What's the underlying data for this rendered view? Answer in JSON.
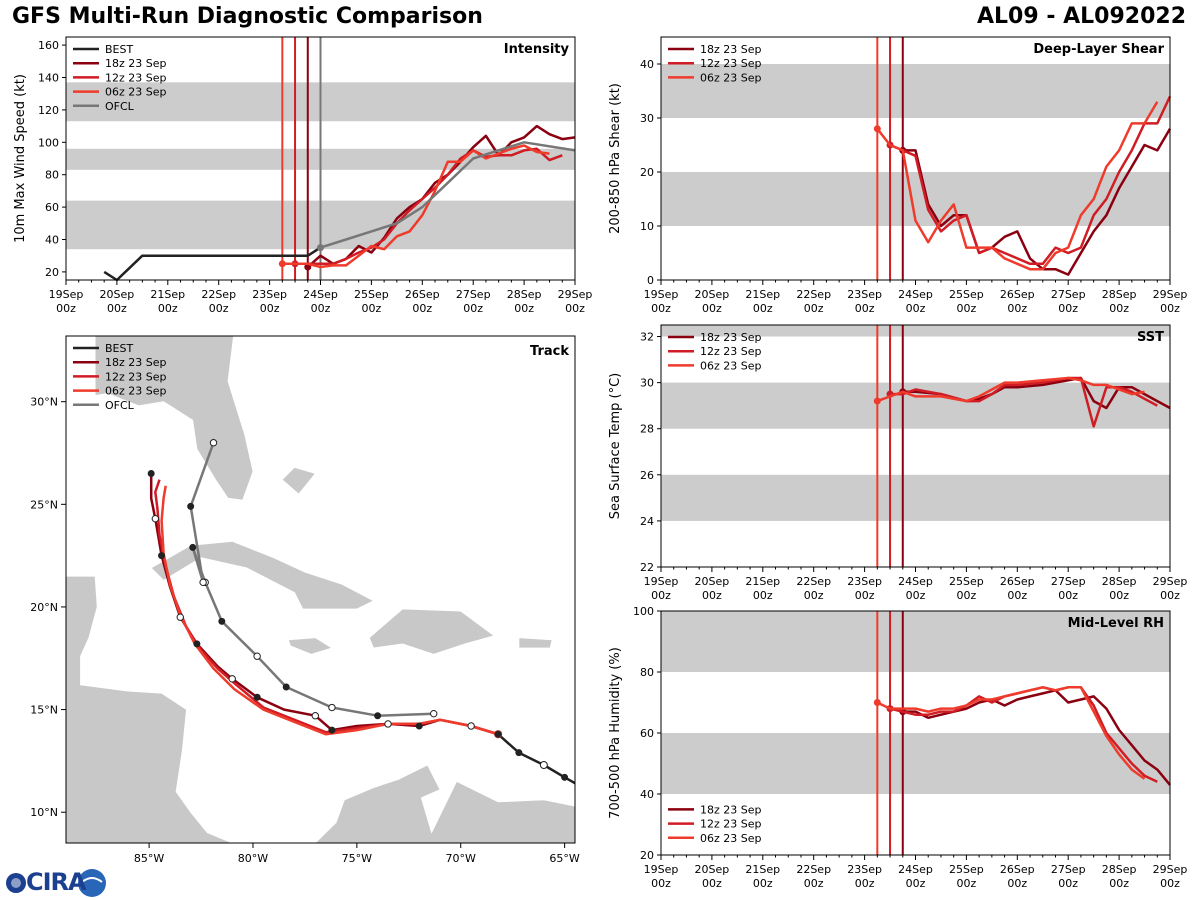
{
  "header": {
    "title": "GFS Multi-Run Diagnostic Comparison",
    "storm_id": "AL09 - AL092022"
  },
  "logo": {
    "text": "CIRA"
  },
  "colors": {
    "best": "#222222",
    "run18z": "#8b0010",
    "run12z": "#d01c24",
    "run06z": "#ef3b2c",
    "ofcl": "#777777",
    "band": "#cccccc",
    "land": "#c8c8c8"
  },
  "time_axis": {
    "ticks": [
      "19Sep\n00z",
      "20Sep\n00z",
      "21Sep\n00z",
      "22Sep\n00z",
      "23Sep\n00z",
      "24Sep\n00z",
      "25Sep\n00z",
      "26Sep\n00z",
      "27Sep\n00z",
      "28Sep\n00z",
      "29Sep\n00z"
    ],
    "init_lines_hours": {
      "06z 23 Sep": 102,
      "12z 23 Sep": 108,
      "18z 23 Sep": 114,
      "OFCL": 120
    }
  },
  "chart_data": [
    {
      "id": "intensity",
      "type": "line",
      "title": "Intensity",
      "xlabel": "",
      "ylabel": "10m Max Wind Speed (kt)",
      "xlim_hours": [
        0,
        240
      ],
      "ylim": [
        15,
        165
      ],
      "yticks": [
        20,
        40,
        60,
        80,
        100,
        120,
        140,
        160
      ],
      "bands": [
        [
          34,
          64
        ],
        [
          83,
          96
        ],
        [
          113,
          137
        ]
      ],
      "legend": {
        "position": "top-left",
        "entries": [
          "BEST",
          "18z 23 Sep",
          "12z 23 Sep",
          "06z 23 Sep",
          "OFCL"
        ]
      },
      "series": [
        {
          "name": "BEST",
          "x_hours": [
            18,
            24,
            36,
            48,
            60,
            72,
            84,
            96,
            108,
            114,
            120
          ],
          "values": [
            20,
            15,
            30,
            30,
            30,
            30,
            30,
            30,
            30,
            30,
            35
          ]
        },
        {
          "name": "18z 23 Sep",
          "x_hours": [
            114,
            120,
            126,
            132,
            138,
            144,
            150,
            156,
            162,
            168,
            174,
            180,
            186,
            192,
            198,
            204,
            210,
            216,
            222,
            228,
            234,
            240
          ],
          "values": [
            23,
            30,
            25,
            28,
            36,
            32,
            41,
            53,
            60,
            65,
            75,
            80,
            88,
            97,
            104,
            92,
            100,
            103,
            110,
            105,
            102,
            103
          ]
        },
        {
          "name": "12z 23 Sep",
          "x_hours": [
            108,
            114,
            120,
            126,
            132,
            138,
            144,
            150,
            156,
            162,
            168,
            174,
            180,
            186,
            192,
            198,
            204,
            210,
            216,
            222,
            228,
            234
          ],
          "values": [
            25,
            25,
            25,
            25,
            28,
            32,
            35,
            40,
            50,
            58,
            65,
            72,
            80,
            90,
            95,
            91,
            92,
            92,
            95,
            96,
            89,
            92
          ]
        },
        {
          "name": "06z 23 Sep",
          "x_hours": [
            102,
            108,
            114,
            120,
            126,
            132,
            138,
            144,
            150,
            156,
            162,
            168,
            174,
            180,
            186,
            192,
            198,
            204,
            210,
            216,
            222,
            228
          ],
          "values": [
            25,
            25,
            25,
            23,
            24,
            24,
            30,
            36,
            34,
            42,
            45,
            55,
            70,
            88,
            88,
            95,
            90,
            93,
            96,
            98,
            94,
            93
          ]
        },
        {
          "name": "OFCL",
          "x_hours": [
            120,
            132,
            144,
            156,
            168,
            180,
            192,
            216,
            240
          ],
          "values": [
            35,
            40,
            45,
            50,
            60,
            75,
            90,
            100,
            95
          ]
        }
      ]
    },
    {
      "id": "shear",
      "type": "line",
      "title": "Deep-Layer Shear",
      "xlabel": "",
      "ylabel": "200-850 hPa Shear (kt)",
      "xlim_hours": [
        0,
        240
      ],
      "ylim": [
        0,
        45
      ],
      "yticks": [
        0,
        10,
        20,
        30,
        40
      ],
      "bands": [
        [
          10,
          20
        ],
        [
          30,
          40
        ]
      ],
      "legend": {
        "position": "top-left",
        "entries": [
          "18z 23 Sep",
          "12z 23 Sep",
          "06z 23 Sep"
        ]
      },
      "series": [
        {
          "name": "18z 23 Sep",
          "x_hours": [
            114,
            120,
            126,
            132,
            138,
            144,
            150,
            156,
            162,
            168,
            174,
            180,
            186,
            192,
            198,
            204,
            210,
            216,
            222,
            228,
            234,
            240
          ],
          "values": [
            24,
            24,
            14,
            10,
            12,
            12,
            5,
            6,
            8,
            9,
            4,
            2,
            2,
            1,
            5,
            9,
            12,
            17,
            21,
            25,
            24,
            28
          ]
        },
        {
          "name": "12z 23 Sep",
          "x_hours": [
            108,
            114,
            120,
            126,
            132,
            138,
            144,
            150,
            156,
            162,
            168,
            174,
            180,
            186,
            192,
            198,
            204,
            210,
            216,
            222,
            228,
            234,
            240
          ],
          "values": [
            25,
            24,
            23,
            13,
            9,
            11,
            12,
            5,
            6,
            5,
            4,
            3,
            3,
            6,
            5,
            6,
            12,
            15,
            20,
            24,
            29,
            29,
            34
          ]
        },
        {
          "name": "06z 23 Sep",
          "x_hours": [
            102,
            108,
            114,
            120,
            126,
            132,
            138,
            144,
            150,
            156,
            162,
            168,
            174,
            180,
            186,
            192,
            198,
            204,
            210,
            216,
            222,
            228,
            234
          ],
          "values": [
            28,
            25,
            24,
            11,
            7,
            11,
            14,
            6,
            6,
            6,
            4,
            3,
            2,
            2,
            5,
            6,
            12,
            15,
            21,
            24,
            29,
            29,
            33
          ]
        }
      ]
    },
    {
      "id": "track",
      "type": "line",
      "title": "Track",
      "xlabel": "",
      "ylabel": "",
      "xlim": [
        -89,
        -64.5
      ],
      "ylim": [
        8.5,
        33.2
      ],
      "xticks": [
        -85,
        -80,
        -75,
        -70,
        -65
      ],
      "xtick_labels": [
        "85°W",
        "80°W",
        "75°W",
        "70°W",
        "65°W"
      ],
      "yticks": [
        10,
        15,
        20,
        25,
        30
      ],
      "ytick_labels": [
        "10°N",
        "15°N",
        "20°N",
        "25°N",
        "30°N"
      ],
      "legend": {
        "position": "top-left",
        "entries": [
          "BEST",
          "18z 23 Sep",
          "12z 23 Sep",
          "06z 23 Sep",
          "OFCL"
        ]
      },
      "series": [
        {
          "name": "BEST",
          "lon": [
            -64.3,
            -65.0,
            -66.0,
            -67.2,
            -68.2
          ],
          "lat": [
            11.3,
            11.7,
            12.3,
            12.9,
            13.8
          ]
        },
        {
          "name": "18z 23 Sep",
          "lon": [
            -68.2,
            -69.5,
            -71.0,
            -72.0,
            -73.5,
            -75.0,
            -76.2,
            -77.0,
            -78.5,
            -79.8,
            -81.0,
            -81.7,
            -82.7,
            -83.5,
            -84.0,
            -84.4,
            -84.7,
            -84.9,
            -84.9
          ],
          "lat": [
            13.8,
            14.2,
            14.5,
            14.2,
            14.3,
            14.2,
            14.0,
            14.7,
            15.0,
            15.6,
            16.5,
            17.1,
            18.2,
            19.5,
            21.0,
            22.5,
            24.3,
            25.3,
            26.5
          ]
        },
        {
          "name": "12z 23 Sep",
          "lon": [
            -68.2,
            -69.5,
            -71.0,
            -72.0,
            -73.5,
            -75.0,
            -76.5,
            -78.0,
            -79.5,
            -80.8,
            -81.7,
            -82.5,
            -83.2,
            -83.8,
            -84.2,
            -84.5,
            -84.6,
            -84.7,
            -84.5
          ],
          "lat": [
            13.8,
            14.2,
            14.5,
            14.3,
            14.3,
            14.1,
            13.9,
            14.5,
            15.1,
            16.2,
            17.0,
            17.9,
            19.0,
            20.5,
            22.0,
            23.5,
            24.8,
            25.6,
            26.2
          ]
        },
        {
          "name": "06z 23 Sep",
          "lon": [
            -68.2,
            -69.5,
            -71.0,
            -72.0,
            -73.5,
            -75.0,
            -76.5,
            -78.0,
            -79.5,
            -80.9,
            -81.9,
            -82.8,
            -83.5,
            -84.0,
            -84.3,
            -84.4,
            -84.3,
            -84.2
          ],
          "lat": [
            13.8,
            14.2,
            14.5,
            14.3,
            14.3,
            14.0,
            13.8,
            14.4,
            15.0,
            16.0,
            17.0,
            18.2,
            19.6,
            21.1,
            22.6,
            24.2,
            25.3,
            25.9
          ]
        },
        {
          "name": "OFCL",
          "lon": [
            -71.3,
            -74.0,
            -76.2,
            -78.4,
            -79.8,
            -81.5,
            -82.3,
            -82.9,
            -82.4,
            -83.0,
            -81.9
          ],
          "lat": [
            14.8,
            14.7,
            15.1,
            16.1,
            17.6,
            19.3,
            21.2,
            22.9,
            21.2,
            24.9,
            28.0
          ]
        }
      ]
    },
    {
      "id": "sst",
      "type": "line",
      "title": "SST",
      "xlabel": "",
      "ylabel": "Sea Surface Temp (°C)",
      "xlim_hours": [
        0,
        240
      ],
      "ylim": [
        22,
        32.5
      ],
      "yticks": [
        22,
        24,
        26,
        28,
        30,
        32
      ],
      "bands": [
        [
          24,
          26
        ],
        [
          28,
          30
        ],
        [
          32,
          32.5
        ]
      ],
      "legend": {
        "position": "top-left",
        "entries": [
          "18z 23 Sep",
          "12z 23 Sep",
          "06z 23 Sep"
        ]
      },
      "series": [
        {
          "name": "18z 23 Sep",
          "x_hours": [
            114,
            120,
            132,
            144,
            150,
            156,
            162,
            168,
            180,
            192,
            198,
            204,
            210,
            216,
            222,
            228,
            234,
            240
          ],
          "values": [
            29.6,
            29.6,
            29.5,
            29.2,
            29.3,
            29.5,
            29.8,
            29.8,
            29.9,
            30.1,
            30.2,
            29.2,
            28.9,
            29.8,
            29.8,
            29.5,
            29.2,
            28.9
          ]
        },
        {
          "name": "12z 23 Sep",
          "x_hours": [
            108,
            114,
            120,
            132,
            144,
            150,
            156,
            162,
            168,
            180,
            192,
            198,
            204,
            210,
            216,
            222,
            228,
            234
          ],
          "values": [
            29.5,
            29.5,
            29.7,
            29.5,
            29.2,
            29.2,
            29.5,
            29.9,
            29.9,
            30.0,
            30.2,
            30.2,
            28.1,
            29.8,
            29.8,
            29.6,
            29.3,
            29.0
          ]
        },
        {
          "name": "06z 23 Sep",
          "x_hours": [
            102,
            108,
            114,
            120,
            132,
            144,
            150,
            156,
            162,
            168,
            180,
            192,
            198,
            204,
            210,
            216,
            222,
            228
          ],
          "values": [
            29.2,
            29.4,
            29.6,
            29.4,
            29.4,
            29.2,
            29.4,
            29.7,
            30.0,
            30.0,
            30.1,
            30.2,
            30.1,
            29.9,
            29.9,
            29.7,
            29.5,
            29.6
          ]
        }
      ]
    },
    {
      "id": "rh",
      "type": "line",
      "title": "Mid-Level RH",
      "xlabel": "",
      "ylabel": "700-500 hPa Humidity (%)",
      "xlim_hours": [
        0,
        240
      ],
      "ylim": [
        20,
        100
      ],
      "yticks": [
        20,
        40,
        60,
        80,
        100
      ],
      "bands": [
        [
          40,
          60
        ],
        [
          80,
          100
        ]
      ],
      "legend": {
        "position": "bottom-left",
        "entries": [
          "18z 23 Sep",
          "12z 23 Sep",
          "06z 23 Sep"
        ]
      },
      "series": [
        {
          "name": "18z 23 Sep",
          "x_hours": [
            114,
            120,
            126,
            132,
            138,
            144,
            150,
            156,
            162,
            168,
            174,
            180,
            186,
            192,
            198,
            204,
            210,
            216,
            222,
            228,
            234,
            240
          ],
          "values": [
            67,
            67,
            65,
            66,
            67,
            68,
            70,
            71,
            69,
            71,
            72,
            73,
            74,
            70,
            71,
            72,
            68,
            61,
            56,
            51,
            48,
            43
          ]
        },
        {
          "name": "12z 23 Sep",
          "x_hours": [
            108,
            114,
            120,
            126,
            132,
            138,
            144,
            150,
            156,
            162,
            168,
            174,
            180,
            186,
            192,
            198,
            204,
            210,
            216,
            222,
            228,
            234
          ],
          "values": [
            68,
            67,
            66,
            66,
            67,
            67,
            69,
            72,
            70,
            72,
            73,
            74,
            75,
            74,
            75,
            75,
            69,
            60,
            55,
            50,
            46,
            44
          ]
        },
        {
          "name": "06z 23 Sep",
          "x_hours": [
            102,
            108,
            114,
            120,
            126,
            132,
            138,
            144,
            150,
            156,
            162,
            168,
            174,
            180,
            186,
            192,
            198,
            204,
            210,
            216,
            222,
            228
          ],
          "values": [
            70,
            68,
            68,
            68,
            67,
            68,
            68,
            69,
            71,
            71,
            72,
            73,
            74,
            75,
            74,
            75,
            75,
            67,
            59,
            53,
            48,
            45
          ]
        }
      ]
    }
  ]
}
